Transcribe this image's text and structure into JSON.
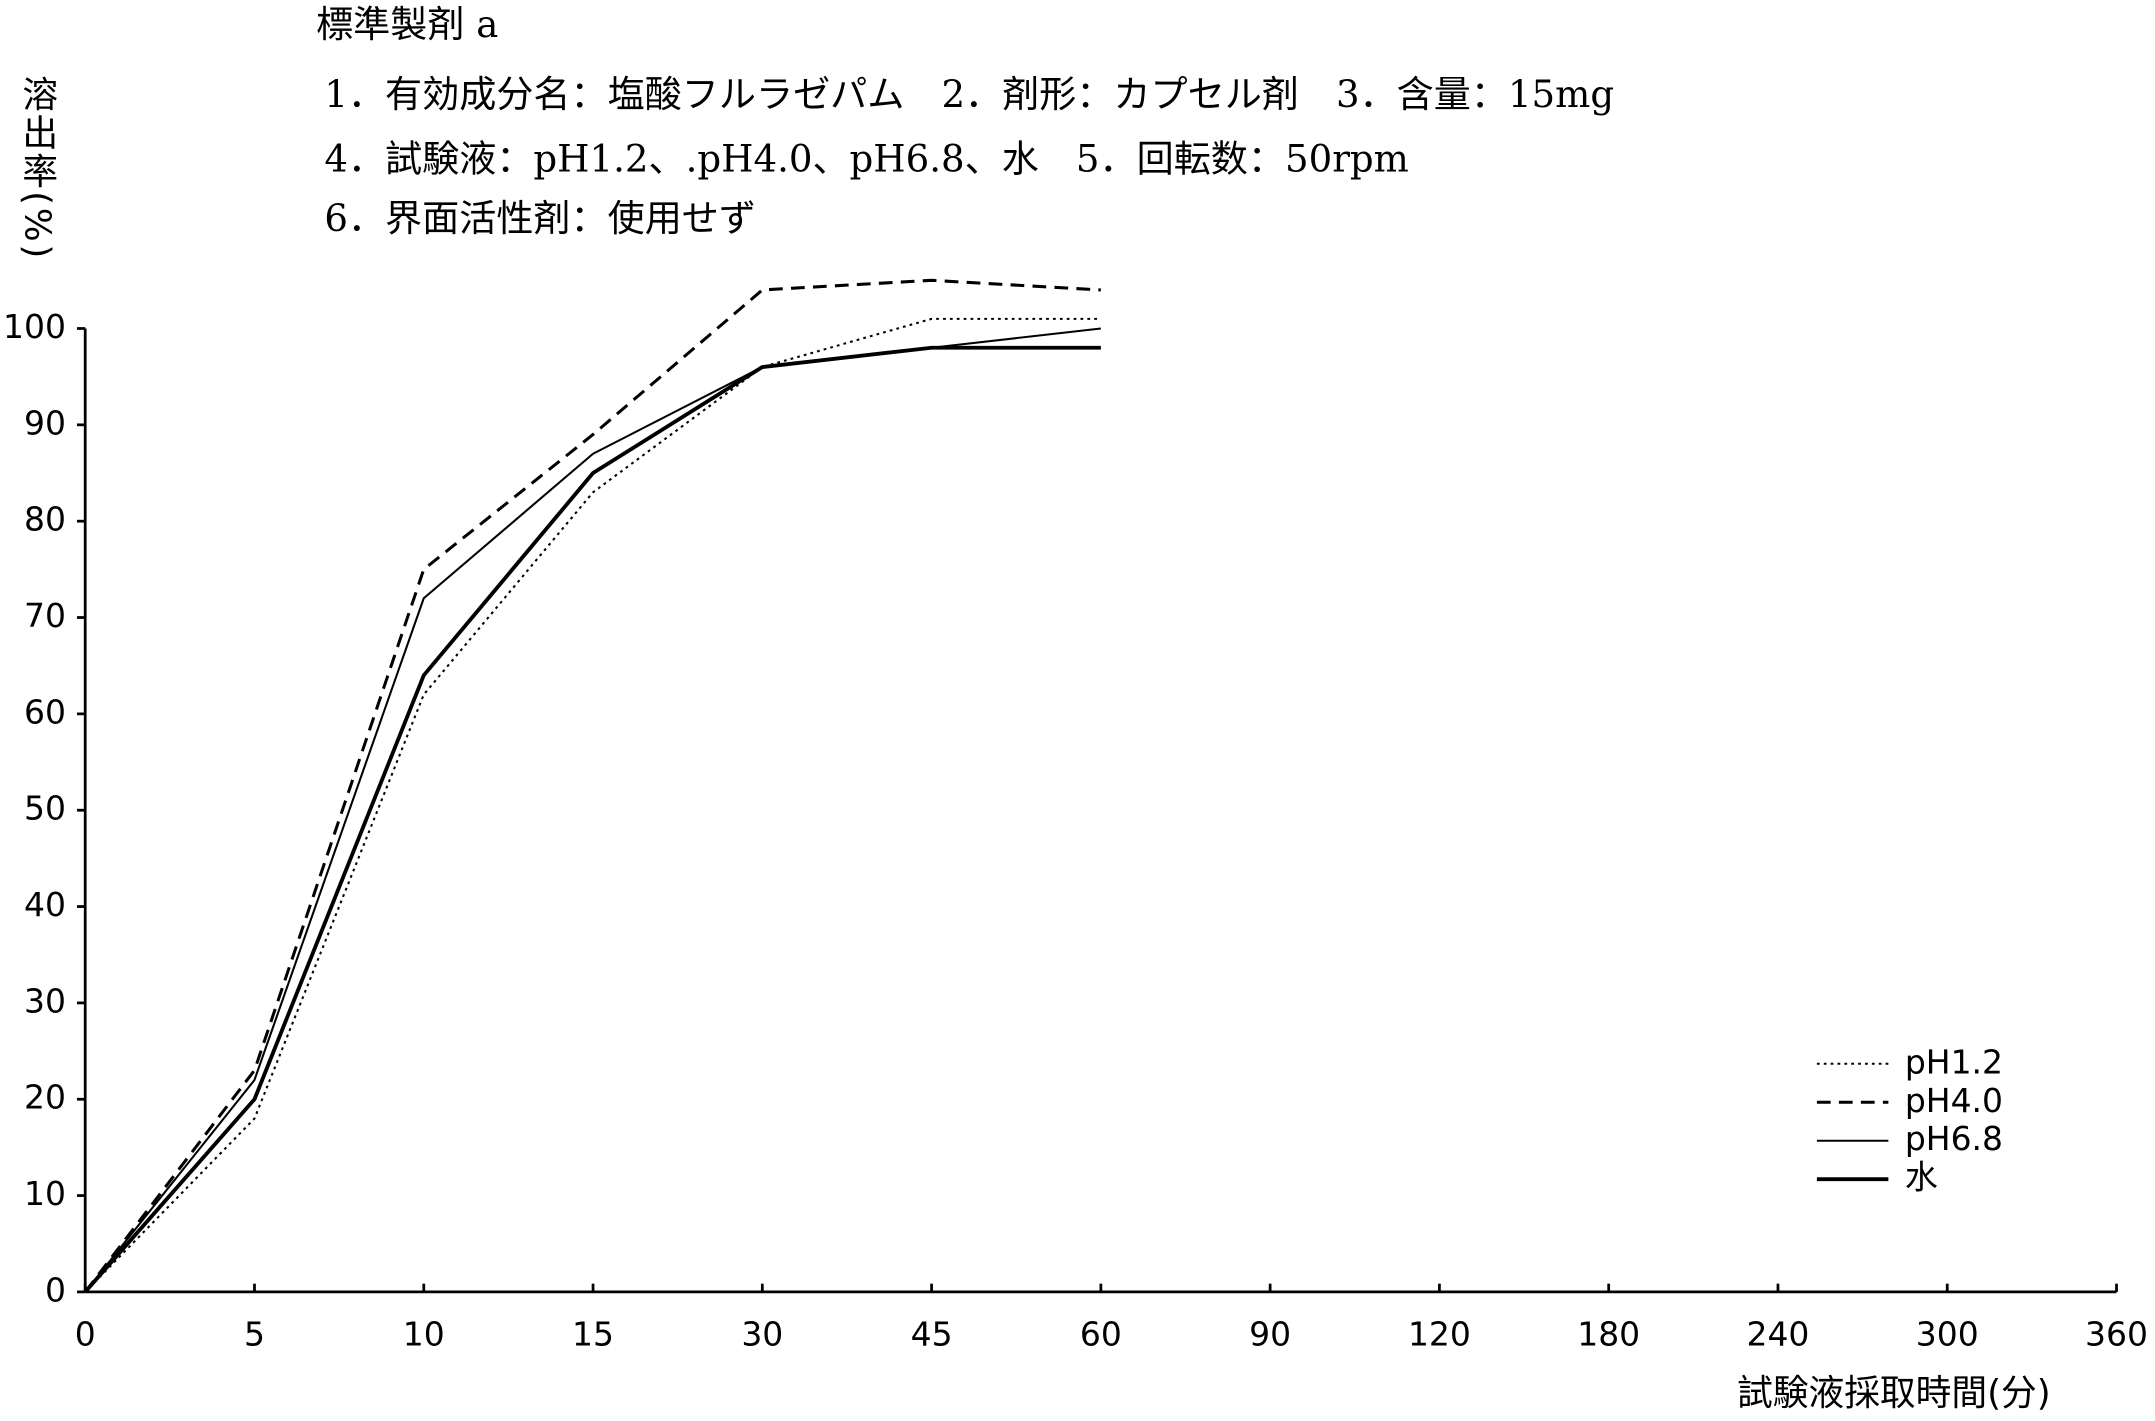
{
  "chart_data": {
    "type": "line",
    "title": "標準製剤 a",
    "subtitle": [
      "1．有効成分名：塩酸フルラゼパム　2．剤形：カプセル剤　3．含量：15mg",
      "4．試験液：pH1.2、.pH4.0、pH6.8、水　5．回転数：50rpm",
      "6．界面活性剤：使用せず"
    ],
    "y_label": "溶出率(%)",
    "x_label": "試験液採取時間(分)",
    "categories": [
      "0",
      "5",
      "10",
      "15",
      "30",
      "45",
      "60",
      "90",
      "120",
      "180",
      "240",
      "300",
      "360"
    ],
    "series": [
      {
        "name": "pH1.2",
        "color": "#000000",
        "line_style": "dotted",
        "values": [
          0,
          18,
          62,
          83,
          96,
          101,
          101,
          null,
          null,
          null,
          null,
          null,
          null
        ]
      },
      {
        "name": "pH4.0",
        "color": "#000000",
        "line_style": "dashed",
        "values": [
          0,
          23,
          75,
          89,
          104,
          105,
          104,
          null,
          null,
          null,
          null,
          null,
          null
        ]
      },
      {
        "name": "pH6.8",
        "color": "#000000",
        "line_style": "thin",
        "values": [
          0,
          22,
          72,
          87,
          96,
          98,
          100,
          null,
          null,
          null,
          null,
          null,
          null
        ]
      },
      {
        "name": "水",
        "color": "#000000",
        "line_style": "thick",
        "values": [
          0,
          20,
          64,
          85,
          96,
          98,
          98,
          null,
          null,
          null,
          null,
          null,
          null
        ]
      }
    ],
    "ylim": [
      0,
      100
    ],
    "yticks": [
      0,
      10,
      20,
      30,
      40,
      50,
      60,
      70,
      80,
      90,
      100
    ],
    "grid": false,
    "legend": "lower-right"
  }
}
